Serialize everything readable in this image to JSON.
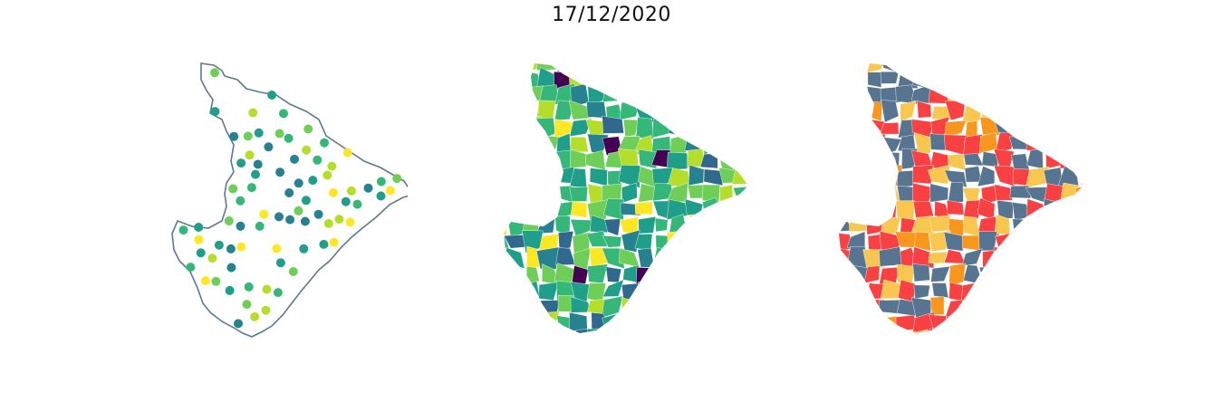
{
  "title": "17/12/2020",
  "colors": {
    "outline": "#5a7a94",
    "viridis": [
      "#440154",
      "#31688e",
      "#26828e",
      "#1f9e89",
      "#35b779",
      "#6ece58",
      "#b5de2b",
      "#fde725"
    ],
    "risk": [
      "#f94144",
      "#f8961e",
      "#f9c74f",
      "#577590"
    ]
  },
  "panels": [
    {
      "name": "points",
      "kind": "scatter-points"
    },
    {
      "name": "municipal-gradient",
      "kind": "choropleth",
      "palette": "viridis"
    },
    {
      "name": "risk-classes",
      "kind": "choropleth",
      "palette": "risk"
    }
  ]
}
